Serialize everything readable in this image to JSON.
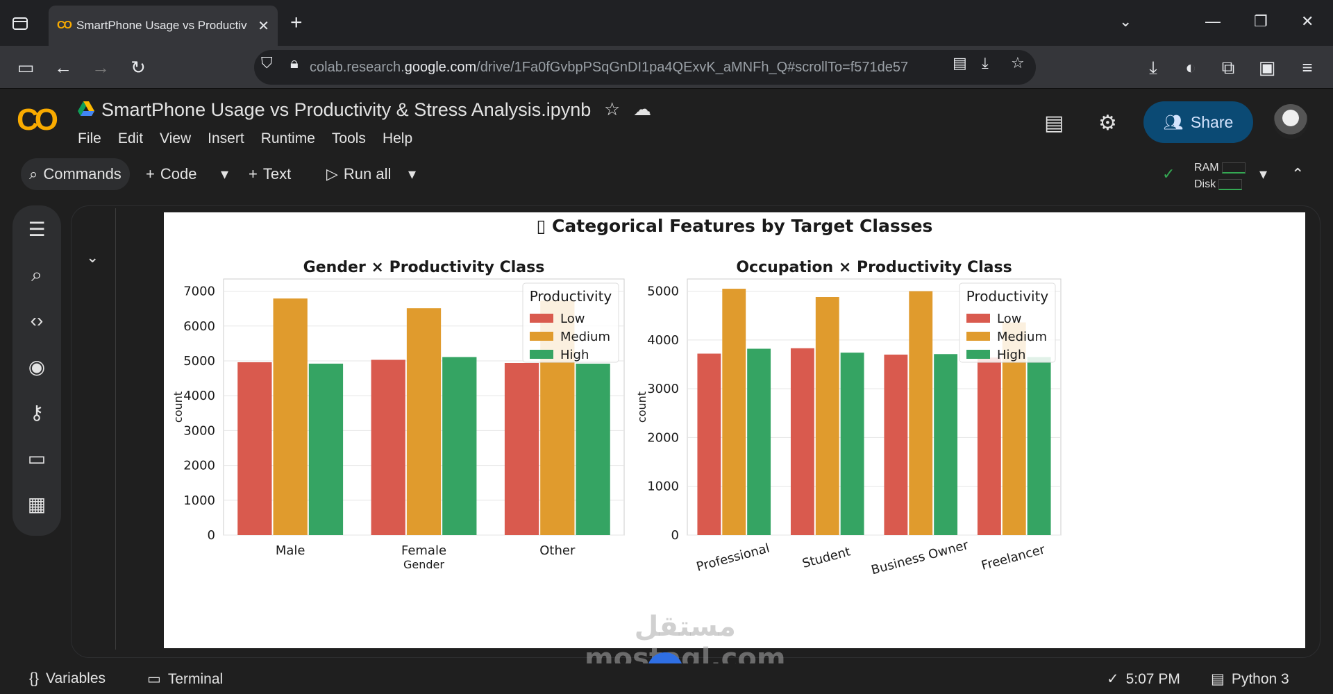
{
  "browser": {
    "tab_title": "SmartPhone Usage vs Productiv",
    "url_prefix": "colab.research.",
    "url_host": "google.com",
    "url_path": "/drive/1Fa0fGvbpPSqGnDI1pa4QExvK_aMNFh_Q#scrollTo=f571de57"
  },
  "colab": {
    "notebook_title": "SmartPhone Usage vs Productivity & Stress Analysis.ipynb",
    "menu": [
      "File",
      "Edit",
      "View",
      "Insert",
      "Runtime",
      "Tools",
      "Help"
    ],
    "share_label": "Share"
  },
  "toolbar": {
    "commands_label": "Commands",
    "code_label": "Code",
    "text_label": "Text",
    "run_all_label": "Run all",
    "ram_label": "RAM",
    "disk_label": "Disk"
  },
  "statusbar": {
    "variables_label": "Variables",
    "terminal_label": "Terminal",
    "time": "5:07 PM",
    "kernel": "Python 3"
  },
  "watermark": {
    "arabic": "مستقل",
    "latin": "mostaql.com"
  },
  "figure": {
    "title": "▯ Categorical Features by Target Classes"
  },
  "colors": {
    "low": "#d95a4e",
    "medium": "#e09b2d",
    "high": "#35a463",
    "share_bg": "#0b4a74",
    "colab_orange": "#f9ab00"
  },
  "chart_data": [
    {
      "type": "bar",
      "title": "Gender × Productivity Class",
      "xlabel": "Gender",
      "ylabel": "count",
      "categories": [
        "Male",
        "Female",
        "Other"
      ],
      "ylim": [
        0,
        7000
      ],
      "yticks": [
        0,
        1000,
        2000,
        3000,
        4000,
        5000,
        6000,
        7000
      ],
      "legend_title": "Productivity",
      "legend_position": "top-right",
      "grid": true,
      "series": [
        {
          "name": "Low",
          "values": [
            4960,
            5030,
            4940
          ]
        },
        {
          "name": "Medium",
          "values": [
            6790,
            6510,
            6730
          ]
        },
        {
          "name": "High",
          "values": [
            4920,
            5110,
            4920
          ]
        }
      ]
    },
    {
      "type": "bar",
      "title": "Occupation × Productivity Class",
      "xlabel": "",
      "ylabel": "count",
      "categories": [
        "Professional",
        "Student",
        "Business Owner",
        "Freelancer"
      ],
      "ylim": [
        0,
        5000
      ],
      "yticks": [
        0,
        1000,
        2000,
        3000,
        4000,
        5000
      ],
      "legend_title": "Productivity",
      "legend_position": "top-right",
      "grid": true,
      "series": [
        {
          "name": "Low",
          "values": [
            3720,
            3830,
            3700,
            3640
          ]
        },
        {
          "name": "Medium",
          "values": [
            5050,
            4880,
            5000,
            4360
          ]
        },
        {
          "name": "High",
          "values": [
            3820,
            3740,
            3710,
            3650
          ]
        }
      ]
    }
  ]
}
